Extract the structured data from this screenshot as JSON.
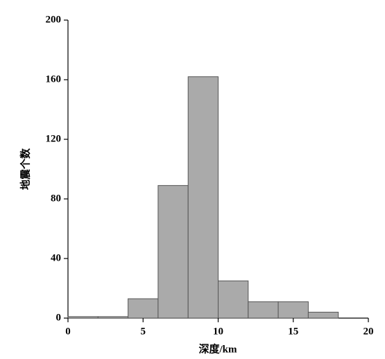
{
  "chart_data": {
    "type": "histogram",
    "xlabel": "深度/km",
    "ylabel": "地震个数",
    "bins": [
      0,
      2,
      4,
      6,
      8,
      10,
      12,
      14,
      16,
      18
    ],
    "values": [
      1,
      1,
      13,
      89,
      162,
      25,
      11,
      11,
      4
    ],
    "color": "#aaaaaa",
    "edgecolor": "#555555",
    "xlim": [
      0,
      20
    ],
    "xticks": [
      0,
      5,
      10,
      15,
      20
    ],
    "ylim": [
      0,
      200
    ],
    "yticks": [
      0,
      40,
      80,
      120,
      160,
      200
    ],
    "grid": false
  }
}
